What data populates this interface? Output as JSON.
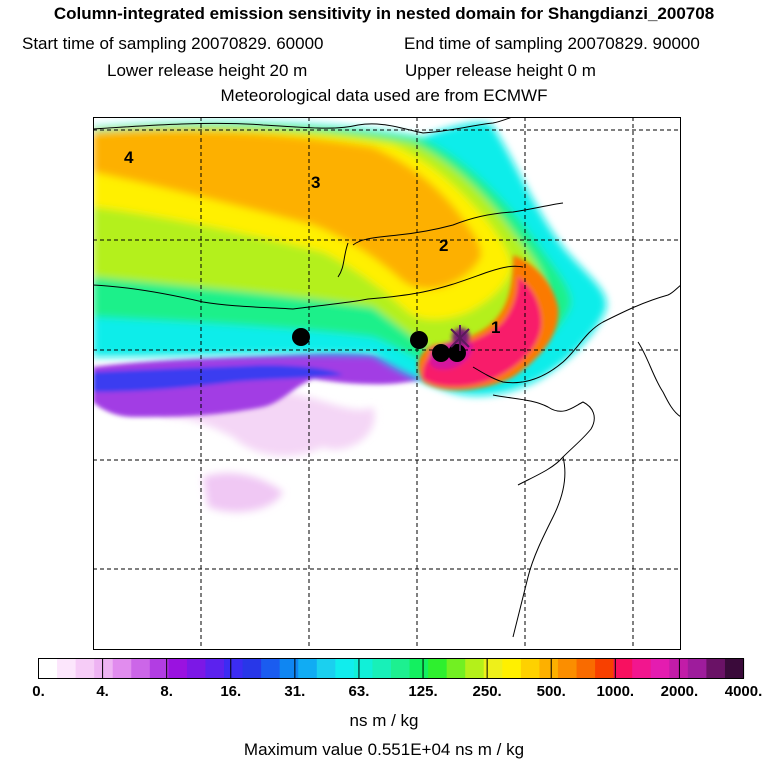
{
  "header": {
    "title": "Column-integrated emission sensitivity in nested domain for Shangdianzi_200708",
    "start_time": "Start time of sampling 20070829. 60000",
    "end_time": "End time of sampling 20070829. 90000",
    "lower_release": "Lower release height   20 m",
    "upper_release": "Upper release height    0 m",
    "met_data": "Meteorological data used are from ECMWF"
  },
  "map": {
    "time_labels": [
      "1",
      "2",
      "3",
      "4"
    ],
    "colorbar": {
      "tick_labels": [
        "0.",
        "4.",
        "8.",
        "16.",
        "31.",
        "63.",
        "125.",
        "250.",
        "500.",
        "1000.",
        "2000.",
        "4000."
      ],
      "colors": [
        "#ffffff",
        "#fce6fc",
        "#f6ccf7",
        "#eeb3f3",
        "#e18cee",
        "#cc66e8",
        "#b23de3",
        "#9a12e0",
        "#7c18e6",
        "#5c22ee",
        "#3c2cf3",
        "#2837e8",
        "#1a5cf0",
        "#0f86f2",
        "#11acf3",
        "#1bd0ef",
        "#11eded",
        "#11f0d8",
        "#18f0b8",
        "#1df090",
        "#13f060",
        "#2ef02e",
        "#72f022",
        "#b4f01a",
        "#eef01a",
        "#fff000",
        "#fed100",
        "#fdb000",
        "#fb8e00",
        "#f96b00",
        "#f84000",
        "#f81060",
        "#f2168e",
        "#e41cb0",
        "#c21ca8",
        "#9e1c9c",
        "#6a1266",
        "#3a0a3a"
      ]
    }
  },
  "footer": {
    "units": "ns m / kg",
    "max_value": "Maximum value  0.551E+04 ns m / kg"
  }
}
